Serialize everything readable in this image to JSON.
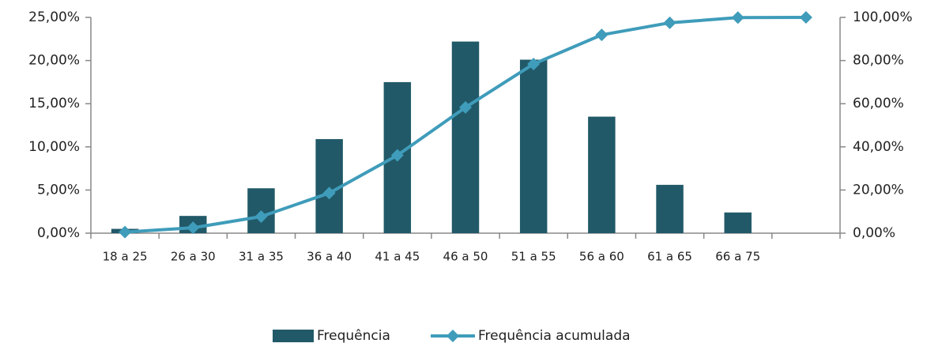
{
  "chart_data": {
    "type": "bar-line",
    "categories": [
      "18 a 25",
      "26 a 30",
      "31 a 35",
      "36 a 40",
      "41 a 45",
      "46 a 50",
      "51 a 55",
      "56 a 60",
      "61 a 65",
      "66 a 75",
      null
    ],
    "series": [
      {
        "name": "Frequência",
        "type": "bar",
        "color": "#215968",
        "values": [
          0.5,
          2.0,
          5.2,
          10.9,
          17.5,
          22.2,
          20.1,
          13.5,
          5.6,
          2.4,
          null
        ]
      },
      {
        "name": "Frequência acumulada",
        "type": "line",
        "axis": "y2",
        "color": "#3f9cba",
        "values": [
          0.5,
          2.5,
          7.7,
          18.6,
          36.1,
          58.3,
          78.4,
          91.9,
          97.5,
          99.9,
          100
        ]
      }
    ],
    "ylim": [
      0,
      25
    ],
    "yticks": [
      {
        "value": 0,
        "label": "0,00%"
      },
      {
        "value": 5,
        "label": "5,00%"
      },
      {
        "value": 10,
        "label": "10,00%"
      },
      {
        "value": 15,
        "label": "15,00%"
      },
      {
        "value": 20,
        "label": "20,00%"
      },
      {
        "value": 25,
        "label": "25,00%"
      }
    ],
    "y2lim": [
      0,
      100
    ],
    "y2ticks": [
      {
        "value": 0,
        "label": "0,00%"
      },
      {
        "value": 20,
        "label": "20,00%"
      },
      {
        "value": 40,
        "label": "40,00%"
      },
      {
        "value": 60,
        "label": "60,00%"
      },
      {
        "value": 80,
        "label": "80,00%"
      },
      {
        "value": 100,
        "label": "100,00%"
      }
    ],
    "grid": false,
    "legend": "bottom"
  }
}
